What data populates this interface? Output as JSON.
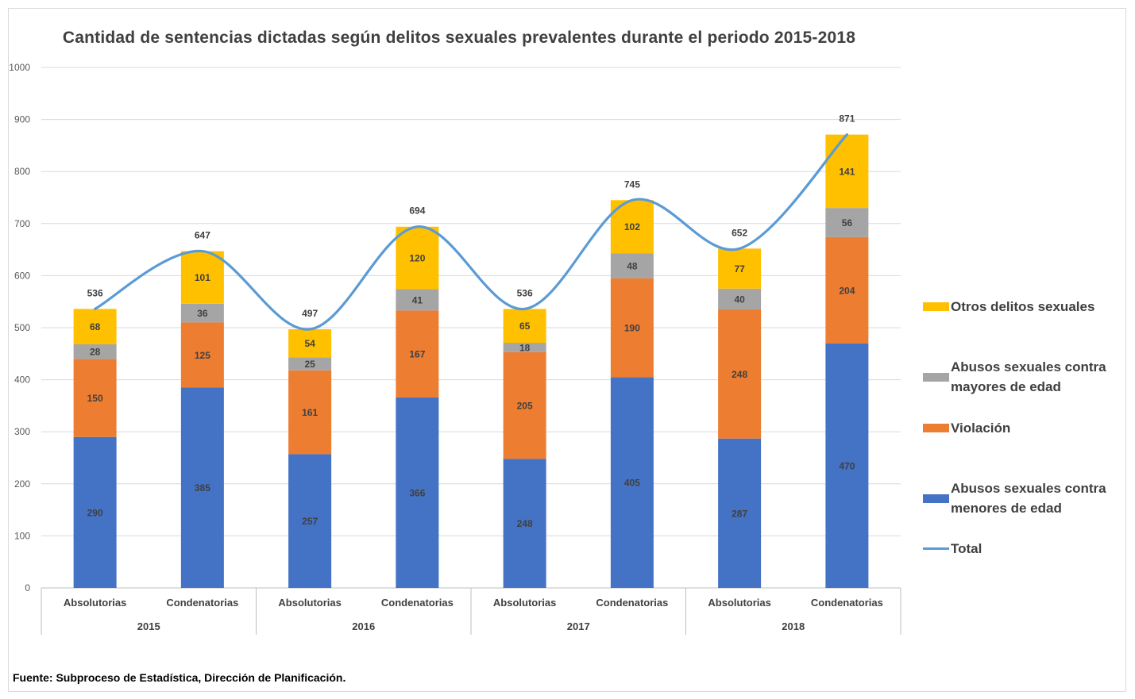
{
  "title": "Cantidad de sentencias dictadas según delitos sexuales prevalentes durante el periodo 2015-2018",
  "source": "Fuente: Subproceso de Estadística, Dirección de Planificación.",
  "legend": {
    "otros": "Otros delitos sexuales",
    "mayores": "Abusos sexuales contra mayores de edad",
    "violacion": "Violación",
    "menores": "Abusos sexuales contra menores de edad",
    "total": "Total"
  },
  "chart_data": {
    "type": "bar",
    "stacked": true,
    "categories": [
      "Absolutorias",
      "Condenatorias",
      "Absolutorias",
      "Condenatorias",
      "Absolutorias",
      "Condenatorias",
      "Absolutorias",
      "Condenatorias"
    ],
    "groups": [
      "2015",
      "2016",
      "2017",
      "2018"
    ],
    "ylim": [
      0,
      1000
    ],
    "yticks": [
      "0",
      "100",
      "200",
      "300",
      "400",
      "500",
      "600",
      "700",
      "800",
      "900",
      "1000"
    ],
    "grid": true,
    "legend_position": "right",
    "series": [
      {
        "name": "Abusos sexuales contra menores de edad",
        "color": "#4472c4",
        "values": [
          290,
          385,
          257,
          366,
          248,
          405,
          287,
          470
        ]
      },
      {
        "name": "Violación",
        "color": "#ed7d31",
        "values": [
          150,
          125,
          161,
          167,
          205,
          190,
          248,
          204
        ]
      },
      {
        "name": "Abusos sexuales contra mayores de edad",
        "color": "#a5a5a5",
        "values": [
          28,
          36,
          25,
          41,
          18,
          48,
          40,
          56
        ]
      },
      {
        "name": "Otros delitos sexuales",
        "color": "#ffc000",
        "values": [
          68,
          101,
          54,
          120,
          65,
          102,
          77,
          141
        ]
      }
    ],
    "line": {
      "name": "Total",
      "type": "line",
      "color": "#5b9bd5",
      "values": [
        536,
        647,
        497,
        694,
        536,
        745,
        652,
        871
      ]
    }
  }
}
